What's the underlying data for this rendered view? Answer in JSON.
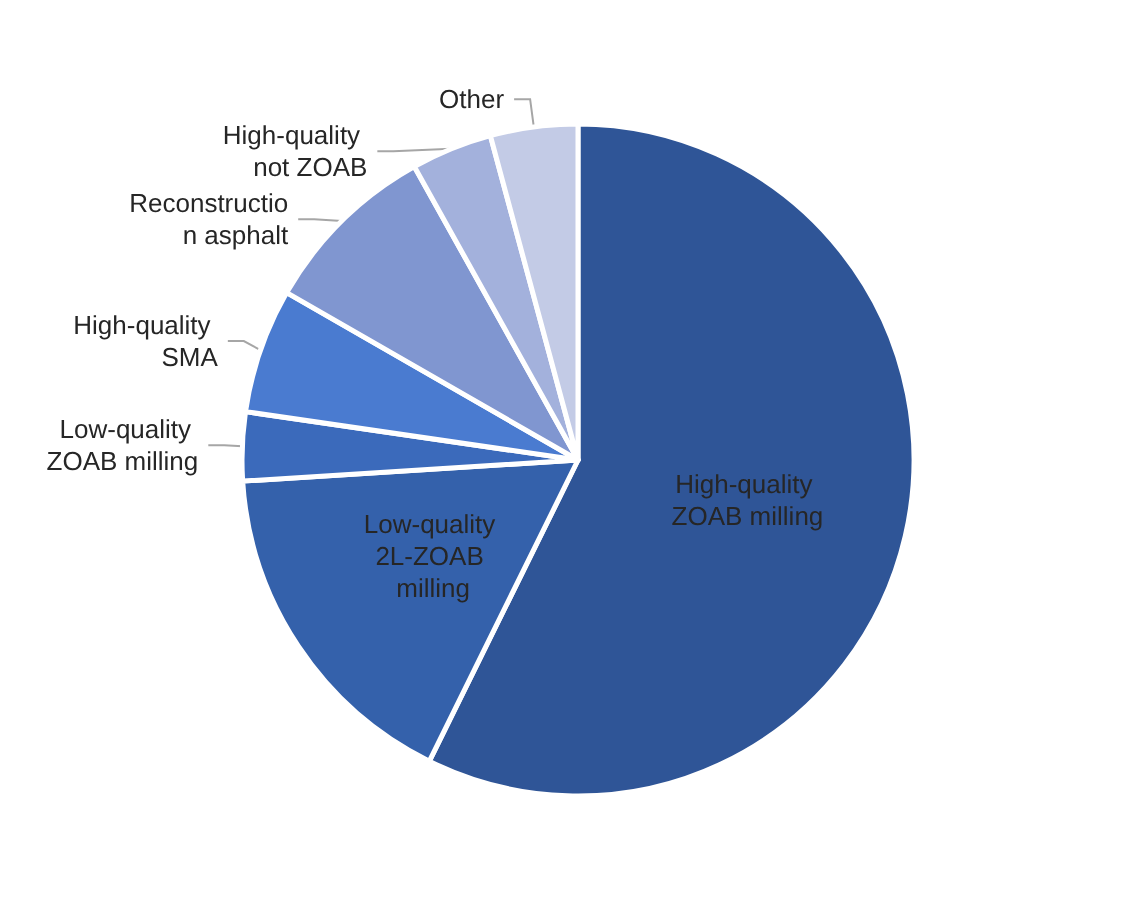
{
  "chart_data": {
    "type": "pie",
    "categories": [
      "High-quality ZOAB milling",
      "Low-quality 2L-ZOAB milling",
      "Low-quality ZOAB milling",
      "High-quality SMA",
      "Reconstruction asphalt",
      "High-quality not ZOAB",
      "Other"
    ],
    "values": [
      57.3,
      16.7,
      3.3,
      6.0,
      8.6,
      3.9,
      4.2
    ],
    "colors": [
      "#2f5597",
      "#3461ab",
      "#3b6abb",
      "#4a7bd0",
      "#8096d0",
      "#a3b1dc",
      "#c3cbe6"
    ],
    "legend": false
  }
}
